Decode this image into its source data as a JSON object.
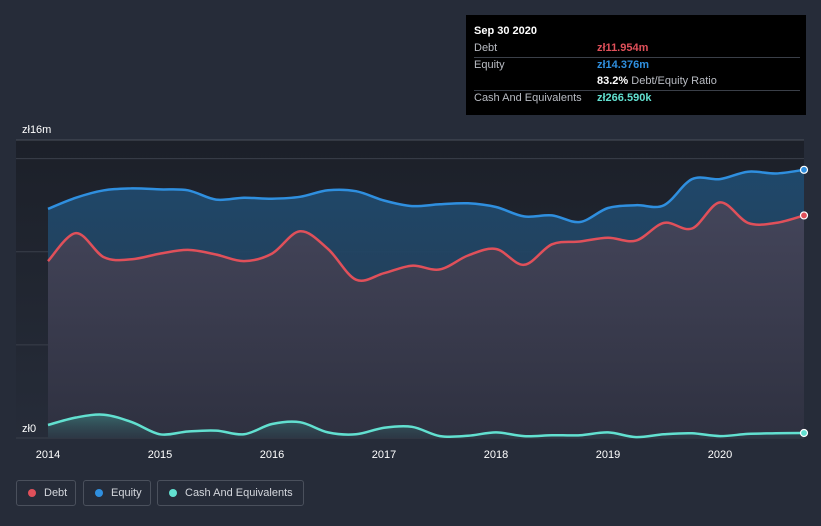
{
  "tooltip": {
    "date": "Sep 30 2020",
    "debt_label": "Debt",
    "debt_value": "zł11.954m",
    "equity_label": "Equity",
    "equity_value": "zł14.376m",
    "ratio_value": "83.2%",
    "ratio_label": "Debt/Equity Ratio",
    "cash_label": "Cash And Equivalents",
    "cash_value": "zł266.590k"
  },
  "colors": {
    "debt": "#e0505a",
    "equity": "#2f8fdf",
    "cash": "#62e0d0",
    "background": "#262c39"
  },
  "legend": [
    {
      "label": "Debt",
      "color": "#e0505a"
    },
    {
      "label": "Equity",
      "color": "#2f8fdf"
    },
    {
      "label": "Cash And Equivalents",
      "color": "#62e0d0"
    }
  ],
  "chart_data": {
    "type": "area",
    "title": "",
    "xlabel": "",
    "ylabel": "",
    "ylim": [
      0,
      16
    ],
    "xlim": [
      2014.0,
      2020.75
    ],
    "y_tick_labels": [
      "zł16m",
      "zł0"
    ],
    "x_ticks": [
      2014,
      2015,
      2016,
      2017,
      2018,
      2019,
      2020
    ],
    "x_tick_labels": [
      "2014",
      "2015",
      "2016",
      "2017",
      "2018",
      "2019",
      "2020"
    ],
    "series": [
      {
        "name": "Equity",
        "points": [
          [
            2014.0,
            12.3
          ],
          [
            2014.25,
            12.9
          ],
          [
            2014.5,
            13.3
          ],
          [
            2014.75,
            13.4
          ],
          [
            2015.0,
            13.35
          ],
          [
            2015.25,
            13.3
          ],
          [
            2015.5,
            12.8
          ],
          [
            2015.75,
            12.9
          ],
          [
            2016.0,
            12.85
          ],
          [
            2016.25,
            12.95
          ],
          [
            2016.5,
            13.3
          ],
          [
            2016.75,
            13.25
          ],
          [
            2017.0,
            12.75
          ],
          [
            2017.25,
            12.45
          ],
          [
            2017.5,
            12.55
          ],
          [
            2017.75,
            12.6
          ],
          [
            2018.0,
            12.4
          ],
          [
            2018.25,
            11.9
          ],
          [
            2018.5,
            11.95
          ],
          [
            2018.75,
            11.6
          ],
          [
            2019.0,
            12.35
          ],
          [
            2019.25,
            12.5
          ],
          [
            2019.5,
            12.5
          ],
          [
            2019.75,
            13.9
          ],
          [
            2020.0,
            13.9
          ],
          [
            2020.25,
            14.3
          ],
          [
            2020.5,
            14.2
          ],
          [
            2020.75,
            14.4
          ]
        ]
      },
      {
        "name": "Debt",
        "points": [
          [
            2014.0,
            9.5
          ],
          [
            2014.25,
            11.0
          ],
          [
            2014.5,
            9.7
          ],
          [
            2014.75,
            9.6
          ],
          [
            2015.0,
            9.9
          ],
          [
            2015.25,
            10.1
          ],
          [
            2015.5,
            9.85
          ],
          [
            2015.75,
            9.5
          ],
          [
            2016.0,
            9.9
          ],
          [
            2016.25,
            11.1
          ],
          [
            2016.5,
            10.15
          ],
          [
            2016.75,
            8.5
          ],
          [
            2017.0,
            8.85
          ],
          [
            2017.25,
            9.25
          ],
          [
            2017.5,
            9.05
          ],
          [
            2017.75,
            9.8
          ],
          [
            2018.0,
            10.15
          ],
          [
            2018.25,
            9.3
          ],
          [
            2018.5,
            10.4
          ],
          [
            2018.75,
            10.55
          ],
          [
            2019.0,
            10.75
          ],
          [
            2019.25,
            10.6
          ],
          [
            2019.5,
            11.55
          ],
          [
            2019.75,
            11.25
          ],
          [
            2020.0,
            12.65
          ],
          [
            2020.25,
            11.55
          ],
          [
            2020.5,
            11.55
          ],
          [
            2020.75,
            11.95
          ]
        ]
      },
      {
        "name": "Cash And Equivalents",
        "points": [
          [
            2014.0,
            0.7
          ],
          [
            2014.25,
            1.1
          ],
          [
            2014.5,
            1.25
          ],
          [
            2014.75,
            0.85
          ],
          [
            2015.0,
            0.2
          ],
          [
            2015.25,
            0.35
          ],
          [
            2015.5,
            0.4
          ],
          [
            2015.75,
            0.2
          ],
          [
            2016.0,
            0.75
          ],
          [
            2016.25,
            0.85
          ],
          [
            2016.5,
            0.3
          ],
          [
            2016.75,
            0.2
          ],
          [
            2017.0,
            0.55
          ],
          [
            2017.25,
            0.6
          ],
          [
            2017.5,
            0.1
          ],
          [
            2017.75,
            0.12
          ],
          [
            2018.0,
            0.3
          ],
          [
            2018.25,
            0.1
          ],
          [
            2018.5,
            0.15
          ],
          [
            2018.75,
            0.15
          ],
          [
            2019.0,
            0.3
          ],
          [
            2019.25,
            0.05
          ],
          [
            2019.5,
            0.2
          ],
          [
            2019.75,
            0.25
          ],
          [
            2020.0,
            0.1
          ],
          [
            2020.25,
            0.22
          ],
          [
            2020.5,
            0.25
          ],
          [
            2020.75,
            0.27
          ]
        ]
      }
    ]
  }
}
